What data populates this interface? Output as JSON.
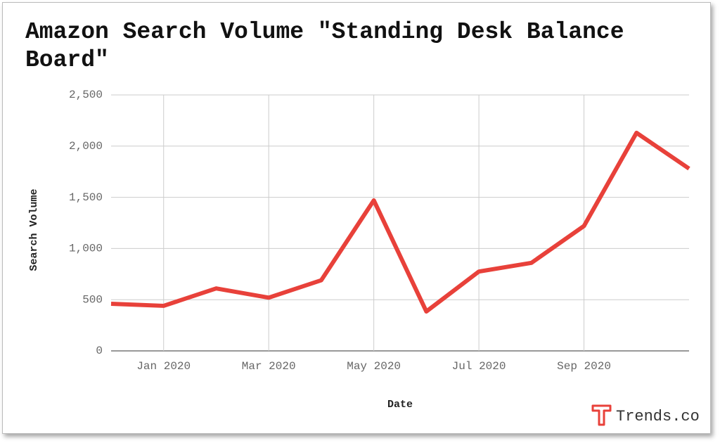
{
  "chart_data": {
    "type": "line",
    "title": "Amazon Search Volume \"Standing Desk Balance Board\"",
    "x_label": "Date",
    "y_label": "Search Volume",
    "categories": [
      null,
      "Jan 2020",
      null,
      "Mar 2020",
      null,
      "May 2020",
      null,
      "Jul 2020",
      null,
      "Sep 2020",
      null,
      null
    ],
    "series": [
      {
        "name": "Search Volume",
        "color": "#e8413a",
        "values": [
          460,
          440,
          610,
          520,
          690,
          1470,
          385,
          775,
          860,
          1220,
          2130,
          1780
        ]
      }
    ],
    "ylim": [
      0,
      2500
    ],
    "yticks": [
      0,
      500,
      {
        "value": 1000,
        "label": "1,000"
      },
      {
        "value": 1500,
        "label": "1,500"
      },
      {
        "value": 2000,
        "label": "2,000"
      },
      {
        "value": 2500,
        "label": "2,500"
      }
    ],
    "grid": true,
    "watermark": "Trends.co"
  }
}
